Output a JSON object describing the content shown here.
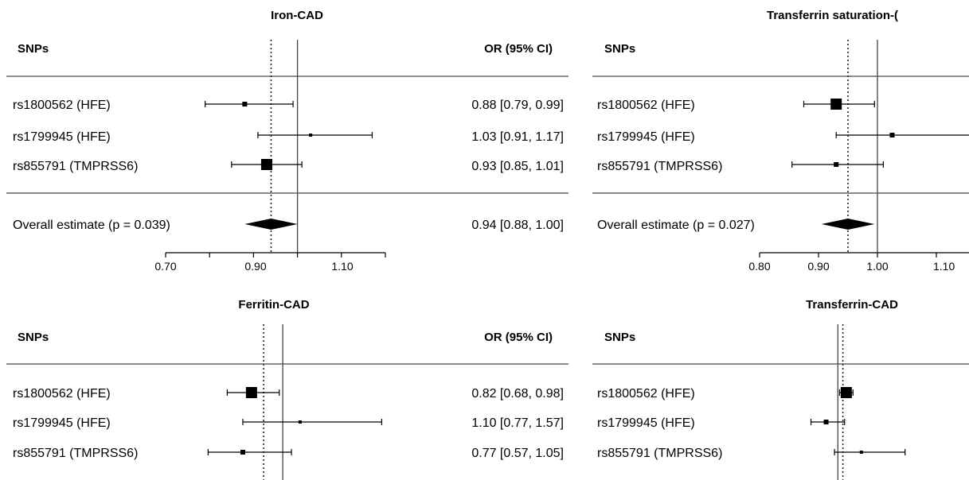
{
  "chart_data": [
    {
      "type": "forest",
      "title": "Iron-CAD",
      "col_label": "SNPs",
      "ci_header": "OR (95% CI)",
      "xlim": [
        0.7,
        1.2
      ],
      "xticks": [
        "0.70",
        "0.90",
        "1.10"
      ],
      "ref_line": 1.0,
      "dotted_line": 0.94,
      "rows": [
        {
          "label": "rs1800562 (HFE)",
          "or": 0.88,
          "lo": 0.79,
          "hi": 0.99,
          "ci_text": "0.88 [0.79, 0.99]",
          "box": 3
        },
        {
          "label": "rs1799945 (HFE)",
          "or": 1.03,
          "lo": 0.91,
          "hi": 1.17,
          "ci_text": "1.03 [0.91, 1.17]",
          "box": 2
        },
        {
          "label": "rs855791 (TMPRSS6)",
          "or": 0.93,
          "lo": 0.85,
          "hi": 1.01,
          "ci_text": "0.93 [0.85, 1.01]",
          "box": 7
        }
      ],
      "overall": {
        "label": "Overall estimate (p = 0.039)",
        "or": 0.94,
        "lo": 0.88,
        "hi": 1.0,
        "ci_text": "0.94 [0.88, 1.00]"
      }
    },
    {
      "type": "forest",
      "title": "Transferrin saturation-(",
      "col_label": "SNPs",
      "xlim": [
        0.8,
        1.2
      ],
      "xticks": [
        "0.80",
        "0.90",
        "1.00",
        "1.10"
      ],
      "ref_line": 1.0,
      "dotted_line": 0.95,
      "rows": [
        {
          "label": "rs1800562 (HFE)",
          "or": 0.93,
          "lo": 0.875,
          "hi": 0.995,
          "box": 7
        },
        {
          "label": "rs1799945 (HFE)",
          "or": 1.025,
          "lo": 0.93,
          "hi": 1.2,
          "box": 3
        },
        {
          "label": "rs855791 (TMPRSS6)",
          "or": 0.93,
          "lo": 0.855,
          "hi": 1.01,
          "box": 3
        }
      ],
      "overall": {
        "label": "Overall estimate (p = 0.027)",
        "or": 0.95,
        "lo": 0.905,
        "hi": 0.995
      }
    },
    {
      "type": "forest",
      "title": "Ferritin-CAD",
      "col_label": "SNPs",
      "ci_header": "OR (95% CI)",
      "xlim": [
        0.55,
        1.6
      ],
      "ref_line": 1.0,
      "dotted_line": 0.89,
      "rows": [
        {
          "label": "rs1800562 (HFE)",
          "or": 0.82,
          "lo": 0.68,
          "hi": 0.98,
          "ci_text": "0.82 [0.68, 0.98]",
          "box": 7
        },
        {
          "label": "rs1799945 (HFE)",
          "or": 1.1,
          "lo": 0.77,
          "hi": 1.57,
          "ci_text": "1.10 [0.77, 1.57]",
          "box": 2
        },
        {
          "label": "rs855791 (TMPRSS6)",
          "or": 0.77,
          "lo": 0.57,
          "hi": 1.05,
          "ci_text": "0.77 [0.57, 1.05]",
          "box": 3
        }
      ]
    },
    {
      "type": "forest",
      "title": "Transferrin-CAD",
      "col_label": "SNPs",
      "xlim": [
        0.85,
        1.35
      ],
      "ref_line": 1.0,
      "dotted_line": 1.015,
      "rows": [
        {
          "label": "rs1800562 (HFE)",
          "or": 1.025,
          "lo": 1.005,
          "hi": 1.045,
          "box": 7
        },
        {
          "label": "rs1799945 (HFE)",
          "or": 0.965,
          "lo": 0.92,
          "hi": 1.02,
          "box": 3
        },
        {
          "label": "rs855791 (TMPRSS6)",
          "or": 1.07,
          "lo": 0.99,
          "hi": 1.2,
          "box": 2
        }
      ]
    }
  ]
}
